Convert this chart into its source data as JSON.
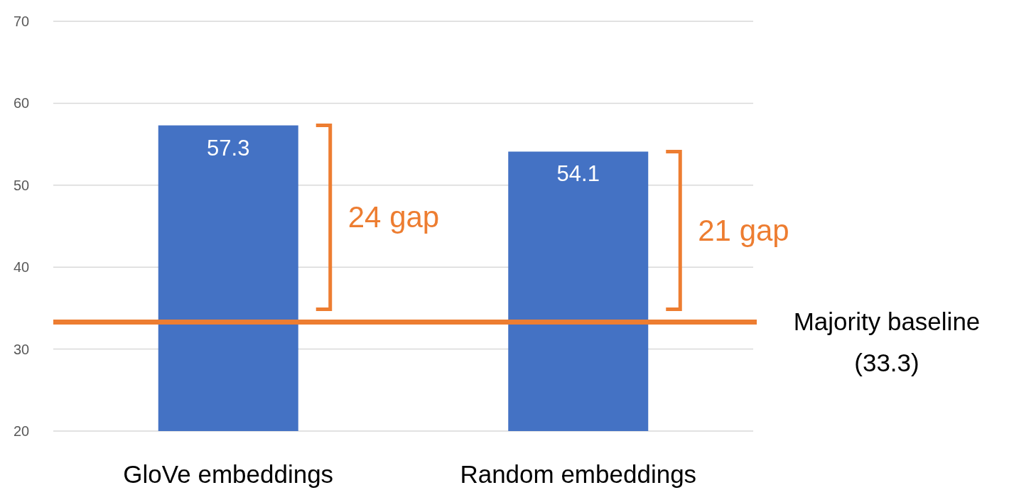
{
  "chart_data": {
    "type": "bar",
    "categories": [
      "GloVe embeddings",
      "Random embeddings"
    ],
    "values": [
      57.3,
      54.1
    ],
    "color": "#4472c4",
    "data_labels": true,
    "ylim": [
      20,
      70
    ],
    "yticks": [
      20,
      30,
      40,
      50,
      60,
      70
    ],
    "grid": "y",
    "ref_lines": [
      {
        "axis": "y",
        "value": 33.3,
        "label": "Majority baseline (33.3)",
        "color": "#ed7d31"
      }
    ],
    "annotations": [
      "24 gap",
      "21 gap"
    ]
  }
}
